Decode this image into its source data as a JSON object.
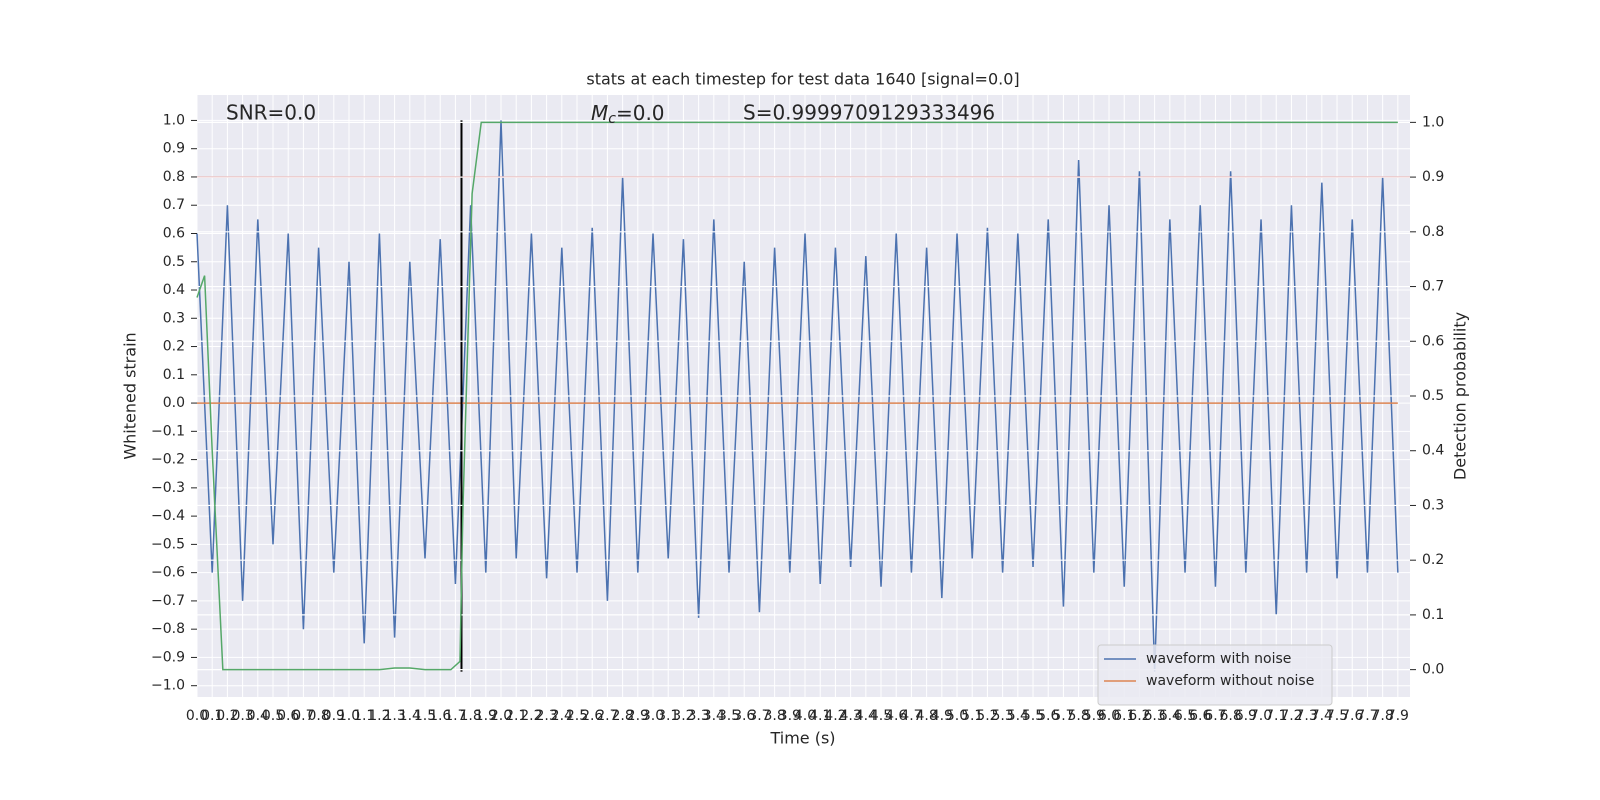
{
  "chart_data": {
    "type": "line",
    "title": "stats at each timestep for test data 1640 [signal=0.0]",
    "xlabel": "Time (s)",
    "ylabel": "Whitened strain",
    "y2label": "Detection probability",
    "annotations": {
      "snr": "SNR=0.0",
      "mc": {
        "base": "M",
        "sub": "c",
        "suffix": "=0.0"
      },
      "s": "S=0.9999709129333496"
    },
    "xlim": [
      0,
      7.98
    ],
    "ylim": [
      -1.04,
      1.09
    ],
    "y2lim": [
      -0.05,
      1.05
    ],
    "xticks": [
      {
        "value": 0,
        "label": "0.0"
      },
      0.1,
      0.2,
      0.3,
      0.4,
      0.5,
      0.6,
      0.7,
      0.8,
      0.9,
      {
        "value": 1,
        "label": "1.0"
      },
      1.1,
      1.2,
      1.3,
      1.4,
      1.5,
      1.6,
      1.7,
      1.8,
      1.9,
      {
        "value": 2,
        "label": "2.0"
      },
      2.1,
      2.2,
      2.3,
      2.4,
      2.5,
      2.6,
      2.7,
      2.8,
      2.9,
      {
        "value": 3,
        "label": "3.0"
      },
      3.1,
      3.2,
      3.3,
      3.4,
      3.5,
      3.6,
      3.7,
      3.8,
      3.9,
      {
        "value": 4,
        "label": "4.0"
      },
      4.1,
      4.2,
      4.3,
      4.4,
      4.5,
      4.6,
      4.7,
      4.8,
      4.9,
      {
        "value": 5,
        "label": "5.0"
      },
      5.1,
      5.2,
      5.3,
      5.4,
      5.5,
      5.6,
      5.7,
      5.8,
      5.9,
      {
        "value": 6,
        "label": "6.0"
      },
      6.1,
      6.2,
      6.3,
      6.4,
      6.5,
      6.6,
      6.7,
      6.8,
      6.9,
      {
        "value": 7,
        "label": "7.0"
      },
      7.1,
      7.2,
      7.3,
      7.4,
      7.5,
      7.6,
      7.7,
      7.8,
      7.9
    ],
    "yticks": [
      {
        "value": -1,
        "label": "−1.0"
      },
      {
        "value": -0.9,
        "label": "−0.9"
      },
      {
        "value": -0.8,
        "label": "−0.8"
      },
      {
        "value": -0.7,
        "label": "−0.7"
      },
      {
        "value": -0.6,
        "label": "−0.6"
      },
      {
        "value": -0.5,
        "label": "−0.5"
      },
      {
        "value": -0.4,
        "label": "−0.4"
      },
      {
        "value": -0.3,
        "label": "−0.3"
      },
      {
        "value": -0.2,
        "label": "−0.2"
      },
      {
        "value": -0.1,
        "label": "−0.1"
      },
      {
        "value": 0,
        "label": "0.0"
      },
      0.1,
      0.2,
      0.3,
      0.4,
      0.5,
      0.6,
      0.7,
      0.8,
      0.9,
      {
        "value": 1,
        "label": "1.0"
      }
    ],
    "y2ticks": [
      {
        "value": 0,
        "label": "0.0"
      },
      0.1,
      0.2,
      0.3,
      0.4,
      0.5,
      0.6,
      0.7,
      0.8,
      0.9,
      {
        "value": 1,
        "label": "1.0"
      }
    ],
    "grid": true,
    "legend": "lower right",
    "series": [
      {
        "name": "waveform with noise",
        "color": "#4c72b0",
        "x": [
          0,
          0.1,
          0.2,
          0.3,
          0.4,
          0.5,
          0.6,
          0.7,
          0.8,
          0.9,
          1,
          1.1,
          1.2,
          1.3,
          1.4,
          1.5,
          1.6,
          1.7,
          1.8,
          1.9,
          2,
          2.1,
          2.2,
          2.3,
          2.4,
          2.5,
          2.6,
          2.7,
          2.8,
          2.9,
          3,
          3.1,
          3.2,
          3.3,
          3.4,
          3.5,
          3.6,
          3.7,
          3.8,
          3.9,
          4,
          4.1,
          4.2,
          4.3,
          4.4,
          4.5,
          4.6,
          4.7,
          4.8,
          4.9,
          5,
          5.1,
          5.2,
          5.3,
          5.4,
          5.5,
          5.6,
          5.7,
          5.8,
          5.9,
          6,
          6.1,
          6.2,
          6.3,
          6.4,
          6.5,
          6.6,
          6.7,
          6.8,
          6.9,
          7,
          7.1,
          7.2,
          7.3,
          7.4,
          7.5,
          7.6,
          7.7,
          7.8,
          7.9
        ],
        "values": [
          0.6,
          -0.6,
          0.7,
          -0.7,
          0.65,
          -0.5,
          0.6,
          -0.8,
          0.55,
          -0.6,
          0.5,
          -0.85,
          0.6,
          -0.83,
          0.5,
          -0.55,
          0.58,
          -0.64,
          0.7,
          -0.6,
          1.0,
          -0.55,
          0.6,
          -0.62,
          0.55,
          -0.6,
          0.62,
          -0.7,
          0.8,
          -0.6,
          0.6,
          -0.55,
          0.58,
          -0.76,
          0.65,
          -0.6,
          0.5,
          -0.74,
          0.55,
          -0.6,
          0.6,
          -0.64,
          0.55,
          -0.58,
          0.52,
          -0.65,
          0.6,
          -0.6,
          0.55,
          -0.69,
          0.6,
          -0.55,
          0.62,
          -0.6,
          0.6,
          -0.58,
          0.65,
          -0.72,
          0.86,
          -0.6,
          0.7,
          -0.65,
          0.82,
          -0.95,
          0.65,
          -0.6,
          0.7,
          -0.65,
          0.82,
          -0.6,
          0.65,
          -0.75,
          0.7,
          -0.6,
          0.78,
          -0.62,
          0.65,
          -0.6,
          0.8,
          -0.6
        ]
      },
      {
        "name": "waveform without noise",
        "color": "#dd8452",
        "x": [
          0,
          7.9
        ],
        "values": [
          0,
          0
        ]
      },
      {
        "color": "#55a868",
        "axis": "y2",
        "x": [
          0,
          0.05,
          0.1,
          0.17,
          0.3,
          0.6,
          0.9,
          1.2,
          1.3,
          1.4,
          1.5,
          1.67,
          1.73,
          1.75,
          1.81,
          1.87,
          7.9
        ],
        "values": [
          0.68,
          0.72,
          0.4,
          0.0,
          0.0,
          0.0,
          0.0,
          0.0,
          0.003,
          0.003,
          0.0,
          0.0,
          0.015,
          0.3,
          0.87,
          1.0,
          1.0
        ]
      }
    ],
    "hlines": [
      {
        "value": 0.8,
        "color": "#c44e52"
      }
    ],
    "vlines": [
      {
        "x": 1.74,
        "ymin": -0.95,
        "ymax": 1.0,
        "color": "#000000"
      }
    ]
  }
}
